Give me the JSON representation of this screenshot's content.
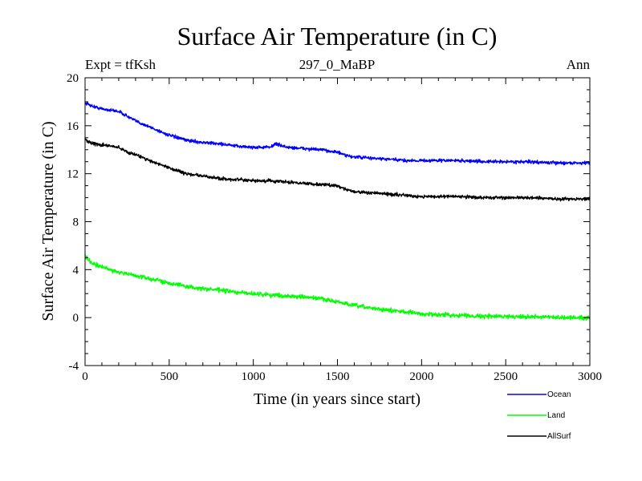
{
  "chart_data": {
    "type": "line",
    "title": "Surface Air Temperature (in C)",
    "subtitle_left": "Expt = tfKsh",
    "subtitle_center": "297_0_MaBP",
    "subtitle_right": "Ann",
    "xlabel": "Time (in years since start)",
    "ylabel": "Surface Air Temperature (in C)",
    "xlim": [
      0,
      3000
    ],
    "ylim": [
      -4,
      20
    ],
    "xticks": [
      0,
      500,
      1000,
      1500,
      2000,
      2500,
      3000
    ],
    "yticks": [
      -4,
      0,
      4,
      8,
      12,
      16,
      20
    ],
    "legend_position": "bottom-right",
    "series": [
      {
        "name": "Ocean",
        "color": "#0000ff",
        "noise": 0.13,
        "x": [
          0,
          50,
          100,
          150,
          200,
          250,
          300,
          400,
          500,
          600,
          700,
          800,
          900,
          1000,
          1100,
          1130,
          1200,
          1300,
          1400,
          1500,
          1550,
          1600,
          1700,
          1800,
          1900,
          2000,
          2200,
          2400,
          2600,
          2800,
          3000
        ],
        "values": [
          17.9,
          17.6,
          17.4,
          17.3,
          17.2,
          16.8,
          16.4,
          15.8,
          15.2,
          14.8,
          14.6,
          14.5,
          14.3,
          14.2,
          14.2,
          14.5,
          14.2,
          14.1,
          14.0,
          13.8,
          13.5,
          13.4,
          13.3,
          13.2,
          13.1,
          13.1,
          13.1,
          13.0,
          13.0,
          12.9,
          12.9
        ]
      },
      {
        "name": "Land",
        "color": "#00ff00",
        "noise": 0.17,
        "x": [
          0,
          20,
          50,
          100,
          200,
          300,
          400,
          500,
          600,
          700,
          800,
          900,
          1000,
          1100,
          1200,
          1300,
          1400,
          1500,
          1600,
          1700,
          1800,
          1900,
          2000,
          2200,
          2400,
          2600,
          2800,
          3000
        ],
        "values": [
          5.2,
          4.8,
          4.5,
          4.2,
          3.8,
          3.5,
          3.2,
          2.9,
          2.6,
          2.4,
          2.3,
          2.1,
          2.0,
          1.9,
          1.8,
          1.7,
          1.6,
          1.3,
          1.0,
          0.8,
          0.6,
          0.5,
          0.3,
          0.2,
          0.1,
          0.1,
          0.0,
          0.0
        ]
      },
      {
        "name": "AllSurf",
        "color": "#000000",
        "noise": 0.13,
        "x": [
          0,
          20,
          50,
          100,
          200,
          250,
          300,
          400,
          500,
          600,
          700,
          800,
          900,
          1000,
          1100,
          1200,
          1300,
          1400,
          1500,
          1550,
          1600,
          1700,
          1800,
          1900,
          2000,
          2200,
          2400,
          2600,
          2800,
          3000
        ],
        "values": [
          15.0,
          14.6,
          14.5,
          14.4,
          14.2,
          13.8,
          13.6,
          13.0,
          12.5,
          12.0,
          11.8,
          11.6,
          11.5,
          11.4,
          11.4,
          11.3,
          11.2,
          11.1,
          11.0,
          10.7,
          10.5,
          10.4,
          10.3,
          10.2,
          10.1,
          10.1,
          10.0,
          10.0,
          9.9,
          9.9
        ]
      }
    ]
  }
}
